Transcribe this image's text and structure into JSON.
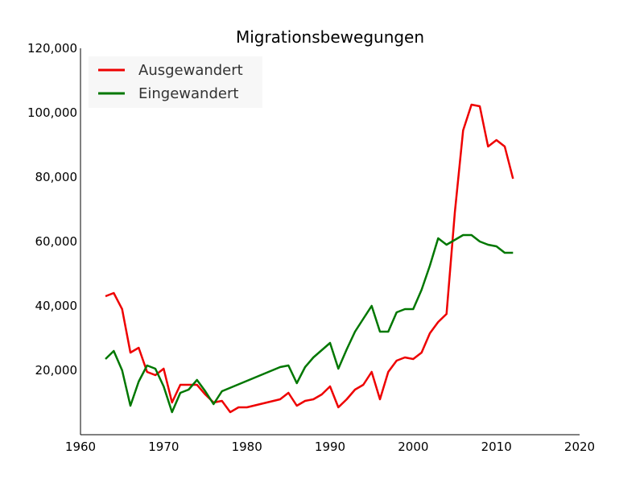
{
  "chart_data": {
    "type": "line",
    "title": "Migrationsbewegungen",
    "xlabel": "",
    "ylabel": "",
    "xlim": [
      1960,
      2020
    ],
    "ylim": [
      0,
      120000
    ],
    "x_ticks": [
      "1960",
      "1970",
      "1980",
      "1990",
      "2000",
      "2010",
      "2020"
    ],
    "y_ticks": [
      "20,000",
      "40,000",
      "60,000",
      "80,000",
      "100,000",
      "120,000"
    ],
    "legend_position": "top-left",
    "grid": false,
    "series": [
      {
        "name": "Ausgewandert",
        "color": "#ee0000",
        "points": [
          [
            1963,
            43000
          ],
          [
            1964,
            44000
          ],
          [
            1965,
            39000
          ],
          [
            1966,
            25500
          ],
          [
            1967,
            27000
          ],
          [
            1968,
            19500
          ],
          [
            1969,
            18500
          ],
          [
            1970,
            20500
          ],
          [
            1971,
            10000
          ],
          [
            1972,
            15500
          ],
          [
            1973,
            15500
          ],
          [
            1974,
            15500
          ],
          [
            1975,
            12500
          ],
          [
            1976,
            10000
          ],
          [
            1977,
            10500
          ],
          [
            1978,
            7000
          ],
          [
            1979,
            8500
          ],
          [
            1980,
            8500
          ],
          [
            1984,
            11000
          ],
          [
            1985,
            13000
          ],
          [
            1986,
            9000
          ],
          [
            1987,
            10500
          ],
          [
            1988,
            11000
          ],
          [
            1989,
            12500
          ],
          [
            1990,
            15000
          ],
          [
            1991,
            8500
          ],
          [
            1992,
            11000
          ],
          [
            1993,
            14000
          ],
          [
            1994,
            15500
          ],
          [
            1995,
            19500
          ],
          [
            1996,
            11000
          ],
          [
            1997,
            19500
          ],
          [
            1998,
            23000
          ],
          [
            1999,
            24000
          ],
          [
            2000,
            23500
          ],
          [
            2001,
            25500
          ],
          [
            2002,
            31500
          ],
          [
            2003,
            35000
          ],
          [
            2004,
            37500
          ],
          [
            2005,
            69000
          ],
          [
            2006,
            94500
          ],
          [
            2007,
            102500
          ],
          [
            2008,
            102000
          ],
          [
            2009,
            89500
          ],
          [
            2010,
            91500
          ],
          [
            2011,
            89500
          ],
          [
            2012,
            79500
          ]
        ]
      },
      {
        "name": "Eingewandert",
        "color": "#007700",
        "points": [
          [
            1963,
            23500
          ],
          [
            1964,
            26000
          ],
          [
            1965,
            20000
          ],
          [
            1966,
            9000
          ],
          [
            1967,
            16500
          ],
          [
            1968,
            21500
          ],
          [
            1969,
            20500
          ],
          [
            1970,
            15000
          ],
          [
            1971,
            7000
          ],
          [
            1972,
            13000
          ],
          [
            1973,
            14000
          ],
          [
            1974,
            17000
          ],
          [
            1975,
            13500
          ],
          [
            1976,
            9500
          ],
          [
            1977,
            13500
          ],
          [
            1984,
            21000
          ],
          [
            1985,
            21500
          ],
          [
            1986,
            16000
          ],
          [
            1987,
            21000
          ],
          [
            1988,
            24000
          ],
          [
            1990,
            28500
          ],
          [
            1991,
            20500
          ],
          [
            1992,
            26500
          ],
          [
            1993,
            32000
          ],
          [
            1994,
            36000
          ],
          [
            1995,
            40000
          ],
          [
            1996,
            32000
          ],
          [
            1997,
            32000
          ],
          [
            1998,
            38000
          ],
          [
            1999,
            39000
          ],
          [
            2000,
            39000
          ],
          [
            2001,
            45000
          ],
          [
            2002,
            52500
          ],
          [
            2003,
            61000
          ],
          [
            2004,
            59000
          ],
          [
            2005,
            60500
          ],
          [
            2006,
            62000
          ],
          [
            2007,
            62000
          ],
          [
            2008,
            60000
          ],
          [
            2009,
            59000
          ],
          [
            2010,
            58500
          ],
          [
            2011,
            56500
          ],
          [
            2012,
            56500
          ]
        ]
      }
    ]
  }
}
